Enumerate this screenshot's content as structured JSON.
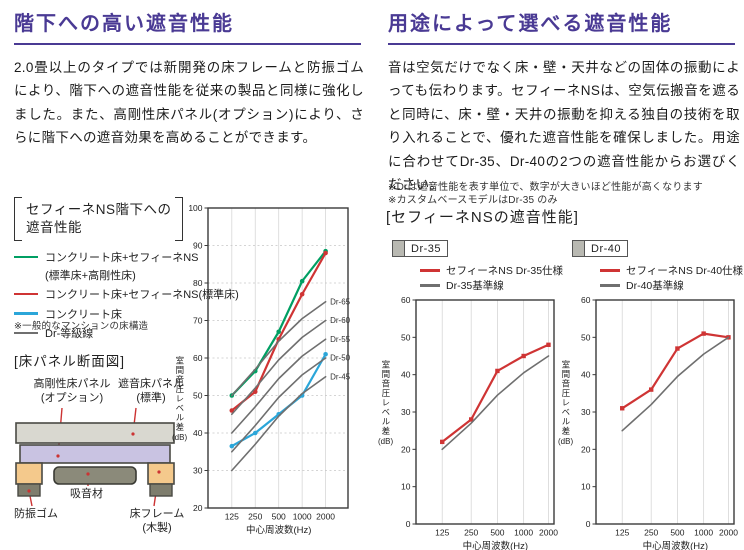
{
  "left": {
    "title": "階下への高い遮音性能",
    "paragraph": "2.0畳以上のタイプでは新開発の床フレームと防振ゴムにより、階下への遮音性能を従来の製品と同様に強化しました。また、高剛性床パネル(オプション)により、さらに階下への遮音効果を高めることができます。",
    "chart_caption_line1": "セフィーネNS階下への",
    "chart_caption_line2": "遮音性能",
    "legend": [
      {
        "color": "#009f63",
        "label": "コンクリート床+セフィーネNS",
        "label2": "(標準床+高剛性床)"
      },
      {
        "color": "#cf3434",
        "label": "コンクリート床+セフィーネNS(標準床)",
        "label2": ""
      },
      {
        "color": "#2ba6d9",
        "label": "コンクリート床",
        "label2": ""
      },
      {
        "color": "#6f6f6f",
        "label": "Dr-等級線",
        "label2": ""
      }
    ],
    "note": "※一般的なマンションの床構造",
    "diagram": {
      "title": "[床パネル断面図]",
      "labels": {
        "rigid_panel": "高剛性床パネル",
        "rigid_panel2": "(オプション)",
        "sound_panel": "遮音床パネル",
        "sound_panel2": "(標準)",
        "rubber": "防振ゴム",
        "absorber": "吸音材",
        "frame": "床フレーム",
        "frame2": "(木製)"
      },
      "colors": {
        "slab": "#d9d8d0",
        "rigid": "#c9c3e2",
        "leg": "#f4c98c",
        "absorber": "#8b8a7a",
        "foot": "#7e7d6d",
        "line": "#cc3333",
        "border": "#4a4a44"
      }
    }
  },
  "right": {
    "title": "用途によって選べる遮音性能",
    "paragraph": "音は空気だけでなく床・壁・天井などの固体の振動によっても伝わります。セフィーネNSは、空気伝搬音を遮ると同時に、床・壁・天井の振動を抑える独自の技術を取り入れることで、優れた遮音性能を確保しました。用途に合わせてDr-35、Dr-40の2つの遮音性能からお選びください。",
    "note1": "※Drは遮音性能を表す単位で、数字が大きいほど性能が高くなります",
    "note2": "※カスタムベースモデルはDr-35 のみ",
    "subtitle": "[セフィーネNSの遮音性能]"
  },
  "chart_data": [
    {
      "id": "main",
      "type": "line",
      "title": "セフィーネNS階下への遮音性能",
      "x_categories": [
        "125",
        "250",
        "500",
        "1000",
        "2000"
      ],
      "xlabel": "中心周波数(Hz)",
      "ylabel_main": "室間音圧レベル差",
      "ylabel_unit": "(dB)",
      "ylim": [
        20,
        100
      ],
      "ytick_step": 10,
      "grid": "both",
      "series": [
        {
          "name": "コンクリート床+セフィーネNS(標準床+高剛性床)",
          "color": "#009f63",
          "values": [
            50,
            56.5,
            67,
            80.5,
            88.5
          ],
          "markers": true
        },
        {
          "name": "コンクリート床+セフィーネNS(標準床)",
          "color": "#cf3434",
          "values": [
            46,
            51,
            65,
            77,
            88
          ],
          "markers": true
        },
        {
          "name": "コンクリート床",
          "color": "#2ba6d9",
          "values": [
            36.5,
            40,
            45,
            50,
            61
          ],
          "markers": true
        },
        {
          "name": "Dr-65等級線",
          "color": "#6f6f6f",
          "values": [
            50,
            57,
            64.5,
            70.5,
            75
          ],
          "end_label": "Dr-65"
        },
        {
          "name": "Dr-60等級線",
          "color": "#6f6f6f",
          "values": [
            45,
            52,
            59.5,
            65.5,
            70
          ],
          "end_label": "Dr-60"
        },
        {
          "name": "Dr-55等級線",
          "color": "#6f6f6f",
          "values": [
            40,
            47,
            54.5,
            60.5,
            65
          ],
          "end_label": "Dr-55"
        },
        {
          "name": "Dr-50等級線",
          "color": "#6f6f6f",
          "values": [
            35,
            42,
            49.5,
            55.5,
            60
          ],
          "end_label": "Dr-50"
        },
        {
          "name": "Dr-45等級線",
          "color": "#6f6f6f",
          "values": [
            30,
            37,
            44.5,
            50.5,
            55
          ],
          "end_label": "Dr-45"
        }
      ]
    },
    {
      "id": "dr35",
      "type": "line",
      "tag": "Dr-35",
      "x_categories": [
        "125",
        "250",
        "500",
        "1000",
        "2000"
      ],
      "xlabel": "中心周波数(Hz)",
      "ylabel_main": "室間音圧レベル差",
      "ylabel_unit": "(dB)",
      "ylim": [
        0,
        60
      ],
      "ytick_step": 10,
      "grid": "vertical",
      "series": [
        {
          "name": "セフィーネNS Dr-35仕様",
          "color": "#cf3434",
          "values": [
            22,
            28,
            41,
            45,
            48
          ],
          "markers": true
        },
        {
          "name": "Dr-35基準線",
          "color": "#6f6f6f",
          "values": [
            20,
            27,
            34.5,
            40.5,
            45
          ]
        }
      ]
    },
    {
      "id": "dr40",
      "type": "line",
      "tag": "Dr-40",
      "x_categories": [
        "125",
        "250",
        "500",
        "1000",
        "2000"
      ],
      "xlabel": "中心周波数(Hz)",
      "ylabel_main": "室間音圧レベル差",
      "ylabel_unit": "(dB)",
      "ylim": [
        0,
        60
      ],
      "ytick_step": 10,
      "grid": "vertical",
      "series": [
        {
          "name": "セフィーネNS Dr-40仕様",
          "color": "#cf3434",
          "values": [
            31,
            36,
            47,
            51,
            50
          ],
          "markers": true
        },
        {
          "name": "Dr-40基準線",
          "color": "#6f6f6f",
          "values": [
            25,
            32,
            39.5,
            45.5,
            50
          ]
        }
      ]
    }
  ]
}
